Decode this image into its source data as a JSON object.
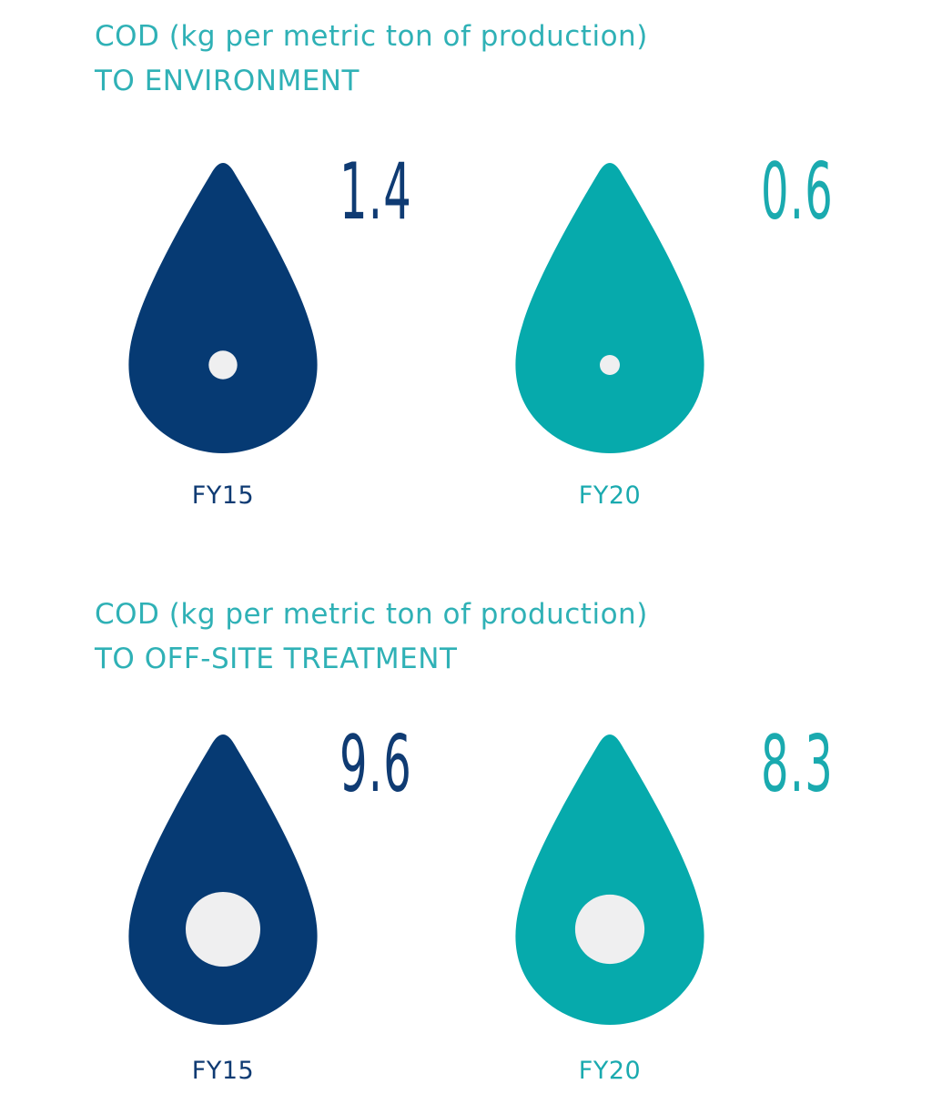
{
  "colors": {
    "fy15": "#063a73",
    "fy20": "#06aaac",
    "title": "#2fb1b6",
    "dot": "#efeff0"
  },
  "chart_data": [
    {
      "type": "pictograph",
      "title": "COD (kg per metric ton of production)",
      "subtitle": "TO ENVIRONMENT",
      "categories": [
        "FY15",
        "FY20"
      ],
      "values": [
        1.4,
        0.6
      ],
      "labels": [
        "1.4",
        "0.6"
      ],
      "icon": "water-drop-icon"
    },
    {
      "type": "pictograph",
      "title": "COD (kg per metric ton of production)",
      "subtitle": "TO OFF-SITE TREATMENT",
      "categories": [
        "FY15",
        "FY20"
      ],
      "values": [
        9.6,
        8.3
      ],
      "labels": [
        "9.6",
        "8.3"
      ],
      "icon": "water-drop-icon"
    }
  ]
}
